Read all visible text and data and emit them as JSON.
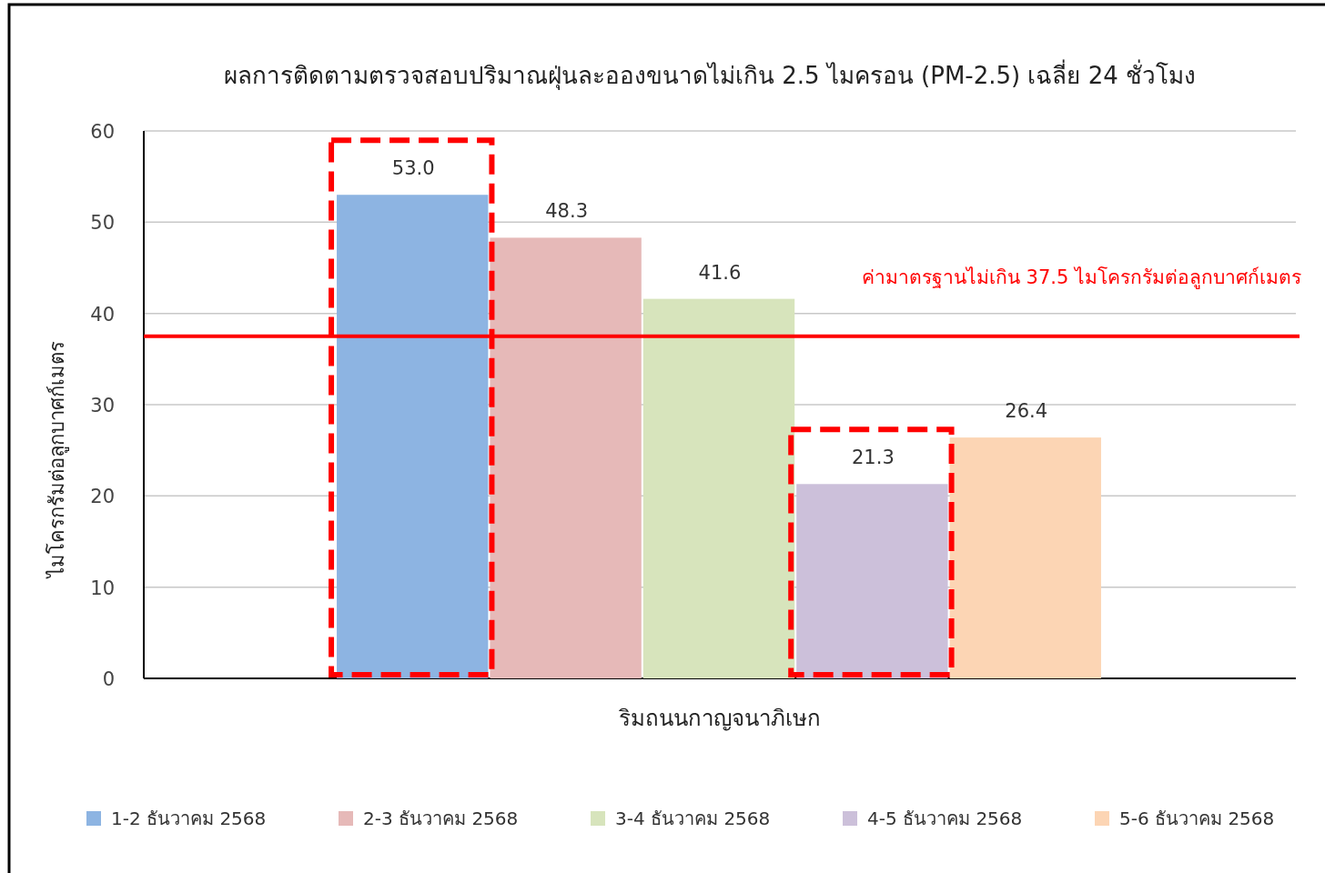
{
  "chart_data": {
    "type": "bar",
    "title": "ผลการติดตามตรวจสอบปริมาณฝุ่นละอองขนาดไม่เกิน 2.5 ไมครอน (PM-2.5) เฉลี่ย 24 ชั่วโมง",
    "ylabel": "ไมโครกรัมต่อลูกบาศก์เมตร",
    "categories": [
      "ริมถนนกาญจนาภิเษก"
    ],
    "series": [
      {
        "name": "1-2 ธันวาคม 2568",
        "color": "#8db4e2",
        "values": [
          53.0
        ],
        "value_labels": [
          "53.0"
        ]
      },
      {
        "name": "2-3 ธันวาคม 2568",
        "color": "#e6b9b8",
        "values": [
          48.3
        ],
        "value_labels": [
          "48.3"
        ]
      },
      {
        "name": "3-4 ธันวาคม 2568",
        "color": "#d7e4bc",
        "values": [
          41.6
        ],
        "value_labels": [
          "41.6"
        ]
      },
      {
        "name": "4-5 ธันวาคม 2568",
        "color": "#ccc0da",
        "values": [
          21.3
        ],
        "value_labels": [
          "21.3"
        ]
      },
      {
        "name": "5-6 ธันวาคม 2568",
        "color": "#fcd5b4",
        "values": [
          26.4
        ],
        "value_labels": [
          "26.4"
        ]
      }
    ],
    "ylim": [
      0,
      60
    ],
    "yticks": [
      0,
      10,
      20,
      30,
      40,
      50,
      60
    ],
    "grid": "y",
    "legend": "bottom",
    "ref_lines": [
      {
        "axis": "y",
        "value": 37.5,
        "label": "ค่ามาตรฐานไม่เกิน 37.5 ไมโครกรัมต่อลูกบาศก์เมตร",
        "color": "#ff0000"
      }
    ]
  }
}
